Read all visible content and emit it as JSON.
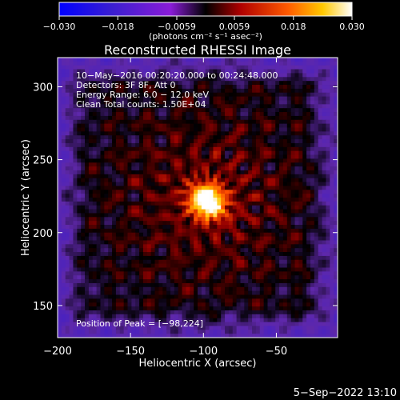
{
  "chart_data": {
    "type": "heatmap",
    "title": "Reconstructed RHESSI Image",
    "xlabel": "Heliocentric X (arcsec)",
    "ylabel": "Heliocentric Y (arcsec)",
    "xlim": [
      -200,
      -8
    ],
    "ylim": [
      128,
      320
    ],
    "xticks": [
      -200,
      -150,
      -100,
      -50
    ],
    "yticks": [
      150,
      200,
      250,
      300
    ],
    "colorbar": {
      "range": [
        -0.03,
        0.03
      ],
      "ticks": [
        "−0.030",
        "−0.018",
        "−0.0059",
        "0.0059",
        "0.018",
        "0.030"
      ],
      "unit_label": "(photons cm⁻² s⁻¹ asec⁻²)"
    },
    "annotations": [
      "10−May−2016 00:20:20.000 to 00:24:48.000",
      "Detectors: 3F 8F, Att 0",
      "Energy Range: 6.0 − 12.0 keV",
      "Clean    Total counts: 1.50E+04"
    ],
    "peak": {
      "x": -98,
      "y": 224,
      "label": "Position of Peak = [−98,224]"
    },
    "footer": "5−Sep−2022 13:10"
  }
}
